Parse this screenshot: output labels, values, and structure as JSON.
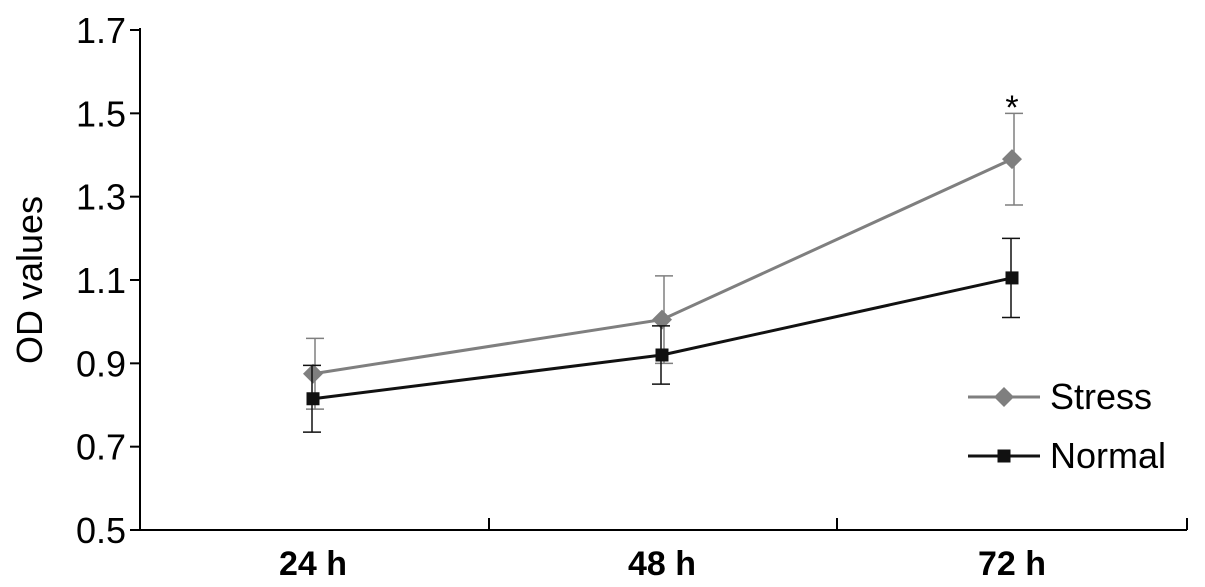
{
  "chart_data": {
    "type": "line",
    "categories": [
      "24 h",
      "48 h",
      "72 h"
    ],
    "ylabel": "OD values",
    "xlabel": "",
    "ylim": [
      0.5,
      1.7
    ],
    "yticks": [
      0.5,
      0.7,
      0.9,
      1.1,
      1.3,
      1.5,
      1.7
    ],
    "ytick_labels": [
      "0.5",
      "0.7",
      "0.9",
      "1.1",
      "1.3",
      "1.5",
      "1.7"
    ],
    "grid": false,
    "legend_position": "bottom-right",
    "series": [
      {
        "name": "Stress",
        "values": [
          0.875,
          1.005,
          1.39
        ],
        "errors": [
          0.085,
          0.105,
          0.11
        ],
        "color": "#7f7f7f",
        "marker": "diamond"
      },
      {
        "name": "Normal",
        "values": [
          0.815,
          0.92,
          1.105
        ],
        "errors": [
          0.08,
          0.07,
          0.095
        ],
        "color": "#111111",
        "marker": "square"
      }
    ],
    "annotations": [
      {
        "text": "*",
        "category": "72 h",
        "y": 1.53
      }
    ]
  }
}
